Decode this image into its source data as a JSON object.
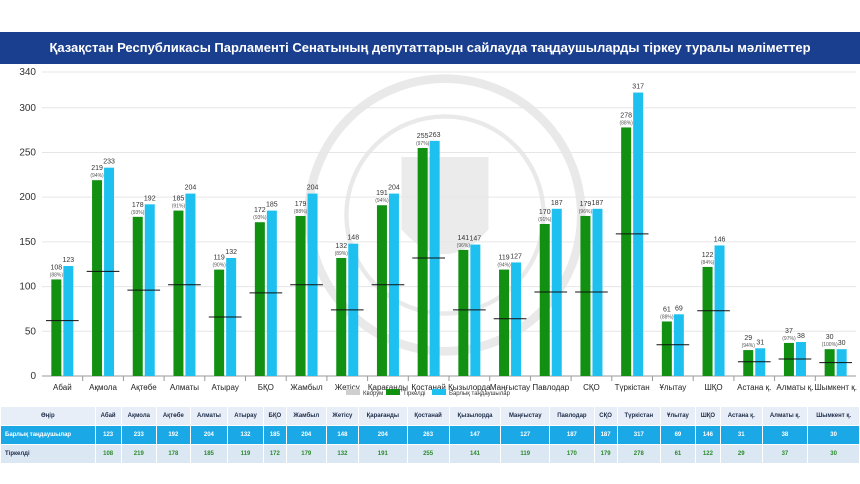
{
  "title": "Қазақстан Республикасы Парламенті Сенатының депутаттарын сайлауда таңдаушыларды тіркеу туралы мәліметтер",
  "colors": {
    "registered": "#129012",
    "total": "#1ec0f0",
    "quorum": "#111111",
    "title_bg": "#1b3f8f"
  },
  "chart_data": {
    "type": "bar",
    "categories": [
      "Абай",
      "Ақмола",
      "Ақтөбе",
      "Алматы",
      "Атырау",
      "БҚО",
      "Жамбыл",
      "Жетісу",
      "Қарағанды",
      "Қостанай",
      "Қызылорда",
      "Маңғыстау",
      "Павлодар",
      "СҚО",
      "Түркістан",
      "Ұлытау",
      "ШҚО",
      "Астана қ.",
      "Алматы қ.",
      "Шымкент қ."
    ],
    "series": [
      {
        "name": "Тіркелді",
        "values": [
          108,
          219,
          178,
          185,
          119,
          172,
          179,
          132,
          191,
          255,
          141,
          119,
          170,
          179,
          278,
          61,
          122,
          29,
          37,
          30
        ],
        "labels_pct": [
          "(88%)",
          "(94%)",
          "(93%)",
          "(91%)",
          "(90%)",
          "(93%)",
          "(88%)",
          "(89%)",
          "(94%)",
          "(97%)",
          "(96%)",
          "(94%)",
          "(91%)",
          "(96%)",
          "(88%)",
          "(88%)",
          "(84%)",
          "(94%)",
          "(97%)",
          "(100%)"
        ]
      },
      {
        "name": "Барлық таңдаушылар",
        "values": [
          123,
          233,
          192,
          204,
          132,
          185,
          204,
          148,
          204,
          263,
          147,
          127,
          187,
          187,
          317,
          69,
          146,
          31,
          38,
          30
        ]
      },
      {
        "name": "Кворум",
        "values": [
          62,
          117,
          96,
          102,
          66,
          93,
          102,
          74,
          102,
          132,
          74,
          64,
          94,
          94,
          159,
          35,
          73,
          16,
          19,
          15
        ]
      }
    ],
    "ylim": [
      0,
      340
    ],
    "yticks": [
      0,
      50,
      100,
      150,
      200,
      250,
      300,
      340
    ],
    "grid": true,
    "legend": "bottom"
  },
  "table": {
    "header_label": "Өңір",
    "rows": [
      {
        "label": "Барлық таңдаушылар",
        "values": [
          "123",
          "233",
          "192",
          "204",
          "132",
          "185",
          "204",
          "148",
          "204",
          "263",
          "147",
          "127",
          "187",
          "187",
          "317",
          "69",
          "146",
          "31",
          "38",
          "30"
        ]
      },
      {
        "label": "Тіркелді",
        "values": [
          "108",
          "219",
          "178",
          "185",
          "119",
          "172",
          "179",
          "132",
          "191",
          "255",
          "141",
          "119",
          "170",
          "179",
          "278",
          "61",
          "122",
          "29",
          "37",
          "30"
        ]
      }
    ]
  }
}
